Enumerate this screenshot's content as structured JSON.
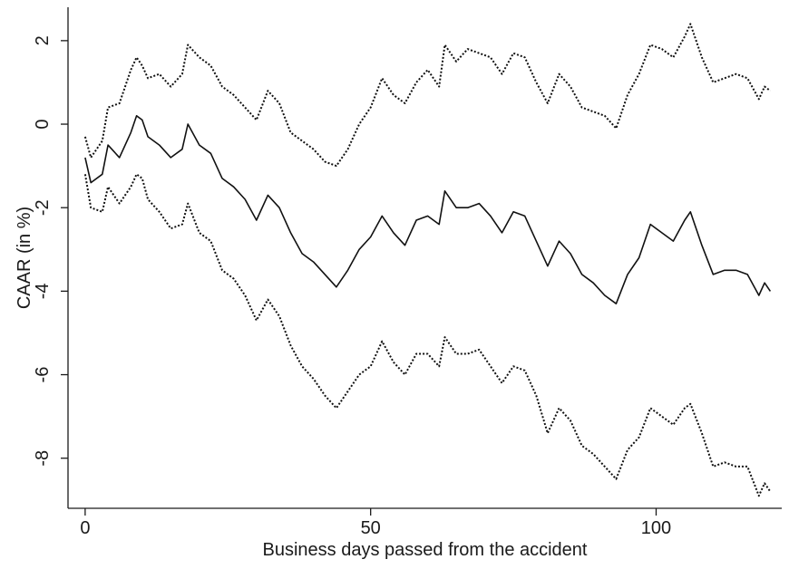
{
  "chart_data": {
    "type": "line",
    "xlabel": "Business days passed from the accident",
    "ylabel": "CAAR (in %)",
    "xlim": [
      -3,
      122
    ],
    "ylim": [
      -9.2,
      2.8
    ],
    "xticks": [
      0,
      50,
      100
    ],
    "yticks": [
      2,
      0,
      -2,
      -4,
      -6,
      -8
    ],
    "grid": false,
    "series": [
      {
        "style": "solid",
        "points": [
          [
            0,
            -0.8
          ],
          [
            1,
            -1.4
          ],
          [
            3,
            -1.2
          ],
          [
            4,
            -0.5
          ],
          [
            6,
            -0.8
          ],
          [
            8,
            -0.2
          ],
          [
            9,
            0.2
          ],
          [
            10,
            0.1
          ],
          [
            11,
            -0.3
          ],
          [
            13,
            -0.5
          ],
          [
            15,
            -0.8
          ],
          [
            17,
            -0.6
          ],
          [
            18,
            0.0
          ],
          [
            20,
            -0.5
          ],
          [
            22,
            -0.7
          ],
          [
            24,
            -1.3
          ],
          [
            26,
            -1.5
          ],
          [
            28,
            -1.8
          ],
          [
            30,
            -2.3
          ],
          [
            32,
            -1.7
          ],
          [
            34,
            -2.0
          ],
          [
            36,
            -2.6
          ],
          [
            38,
            -3.1
          ],
          [
            40,
            -3.3
          ],
          [
            42,
            -3.6
          ],
          [
            44,
            -3.9
          ],
          [
            46,
            -3.5
          ],
          [
            48,
            -3.0
          ],
          [
            50,
            -2.7
          ],
          [
            52,
            -2.2
          ],
          [
            54,
            -2.6
          ],
          [
            56,
            -2.9
          ],
          [
            58,
            -2.3
          ],
          [
            60,
            -2.2
          ],
          [
            62,
            -2.4
          ],
          [
            63,
            -1.6
          ],
          [
            65,
            -2.0
          ],
          [
            67,
            -2.0
          ],
          [
            69,
            -1.9
          ],
          [
            71,
            -2.2
          ],
          [
            73,
            -2.6
          ],
          [
            75,
            -2.1
          ],
          [
            77,
            -2.2
          ],
          [
            79,
            -2.8
          ],
          [
            81,
            -3.4
          ],
          [
            83,
            -2.8
          ],
          [
            85,
            -3.1
          ],
          [
            87,
            -3.6
          ],
          [
            89,
            -3.8
          ],
          [
            91,
            -4.1
          ],
          [
            93,
            -4.3
          ],
          [
            95,
            -3.6
          ],
          [
            97,
            -3.2
          ],
          [
            99,
            -2.4
          ],
          [
            101,
            -2.6
          ],
          [
            103,
            -2.8
          ],
          [
            105,
            -2.3
          ],
          [
            106,
            -2.1
          ],
          [
            108,
            -2.9
          ],
          [
            110,
            -3.6
          ],
          [
            112,
            -3.5
          ],
          [
            114,
            -3.5
          ],
          [
            116,
            -3.6
          ],
          [
            118,
            -4.1
          ],
          [
            119,
            -3.8
          ],
          [
            120,
            -4.0
          ]
        ]
      },
      {
        "style": "dotted",
        "points": [
          [
            0,
            -0.3
          ],
          [
            1,
            -0.8
          ],
          [
            3,
            -0.4
          ],
          [
            4,
            0.4
          ],
          [
            6,
            0.5
          ],
          [
            8,
            1.3
          ],
          [
            9,
            1.6
          ],
          [
            10,
            1.4
          ],
          [
            11,
            1.1
          ],
          [
            13,
            1.2
          ],
          [
            15,
            0.9
          ],
          [
            17,
            1.2
          ],
          [
            18,
            1.9
          ],
          [
            20,
            1.6
          ],
          [
            22,
            1.4
          ],
          [
            24,
            0.9
          ],
          [
            26,
            0.7
          ],
          [
            28,
            0.4
          ],
          [
            30,
            0.1
          ],
          [
            32,
            0.8
          ],
          [
            34,
            0.5
          ],
          [
            36,
            -0.2
          ],
          [
            38,
            -0.4
          ],
          [
            40,
            -0.6
          ],
          [
            42,
            -0.9
          ],
          [
            44,
            -1.0
          ],
          [
            46,
            -0.6
          ],
          [
            48,
            0.0
          ],
          [
            50,
            0.4
          ],
          [
            52,
            1.1
          ],
          [
            54,
            0.7
          ],
          [
            56,
            0.5
          ],
          [
            58,
            1.0
          ],
          [
            60,
            1.3
          ],
          [
            62,
            0.9
          ],
          [
            63,
            1.9
          ],
          [
            65,
            1.5
          ],
          [
            67,
            1.8
          ],
          [
            69,
            1.7
          ],
          [
            71,
            1.6
          ],
          [
            73,
            1.2
          ],
          [
            75,
            1.7
          ],
          [
            77,
            1.6
          ],
          [
            79,
            1.0
          ],
          [
            81,
            0.5
          ],
          [
            83,
            1.2
          ],
          [
            85,
            0.9
          ],
          [
            87,
            0.4
          ],
          [
            89,
            0.3
          ],
          [
            91,
            0.2
          ],
          [
            93,
            -0.1
          ],
          [
            95,
            0.7
          ],
          [
            97,
            1.2
          ],
          [
            99,
            1.9
          ],
          [
            101,
            1.8
          ],
          [
            103,
            1.6
          ],
          [
            105,
            2.1
          ],
          [
            106,
            2.4
          ],
          [
            108,
            1.6
          ],
          [
            110,
            1.0
          ],
          [
            112,
            1.1
          ],
          [
            114,
            1.2
          ],
          [
            116,
            1.1
          ],
          [
            118,
            0.6
          ],
          [
            119,
            0.9
          ],
          [
            120,
            0.8
          ]
        ]
      },
      {
        "style": "dotted",
        "points": [
          [
            0,
            -1.2
          ],
          [
            1,
            -2.0
          ],
          [
            3,
            -2.1
          ],
          [
            4,
            -1.5
          ],
          [
            6,
            -1.9
          ],
          [
            8,
            -1.5
          ],
          [
            9,
            -1.2
          ],
          [
            10,
            -1.3
          ],
          [
            11,
            -1.8
          ],
          [
            13,
            -2.1
          ],
          [
            15,
            -2.5
          ],
          [
            17,
            -2.4
          ],
          [
            18,
            -1.9
          ],
          [
            20,
            -2.6
          ],
          [
            22,
            -2.8
          ],
          [
            24,
            -3.5
          ],
          [
            26,
            -3.7
          ],
          [
            28,
            -4.1
          ],
          [
            30,
            -4.7
          ],
          [
            32,
            -4.2
          ],
          [
            34,
            -4.6
          ],
          [
            36,
            -5.3
          ],
          [
            38,
            -5.8
          ],
          [
            40,
            -6.1
          ],
          [
            42,
            -6.5
          ],
          [
            44,
            -6.8
          ],
          [
            46,
            -6.4
          ],
          [
            48,
            -6.0
          ],
          [
            50,
            -5.8
          ],
          [
            52,
            -5.2
          ],
          [
            54,
            -5.7
          ],
          [
            56,
            -6.0
          ],
          [
            58,
            -5.5
          ],
          [
            60,
            -5.5
          ],
          [
            62,
            -5.8
          ],
          [
            63,
            -5.1
          ],
          [
            65,
            -5.5
          ],
          [
            67,
            -5.5
          ],
          [
            69,
            -5.4
          ],
          [
            71,
            -5.8
          ],
          [
            73,
            -6.2
          ],
          [
            75,
            -5.8
          ],
          [
            77,
            -5.9
          ],
          [
            79,
            -6.5
          ],
          [
            81,
            -7.4
          ],
          [
            83,
            -6.8
          ],
          [
            85,
            -7.1
          ],
          [
            87,
            -7.7
          ],
          [
            89,
            -7.9
          ],
          [
            91,
            -8.2
          ],
          [
            93,
            -8.5
          ],
          [
            95,
            -7.8
          ],
          [
            97,
            -7.5
          ],
          [
            99,
            -6.8
          ],
          [
            101,
            -7.0
          ],
          [
            103,
            -7.2
          ],
          [
            105,
            -6.8
          ],
          [
            106,
            -6.7
          ],
          [
            108,
            -7.4
          ],
          [
            110,
            -8.2
          ],
          [
            112,
            -8.1
          ],
          [
            114,
            -8.2
          ],
          [
            116,
            -8.2
          ],
          [
            118,
            -8.9
          ],
          [
            119,
            -8.6
          ],
          [
            120,
            -8.8
          ]
        ]
      }
    ]
  }
}
